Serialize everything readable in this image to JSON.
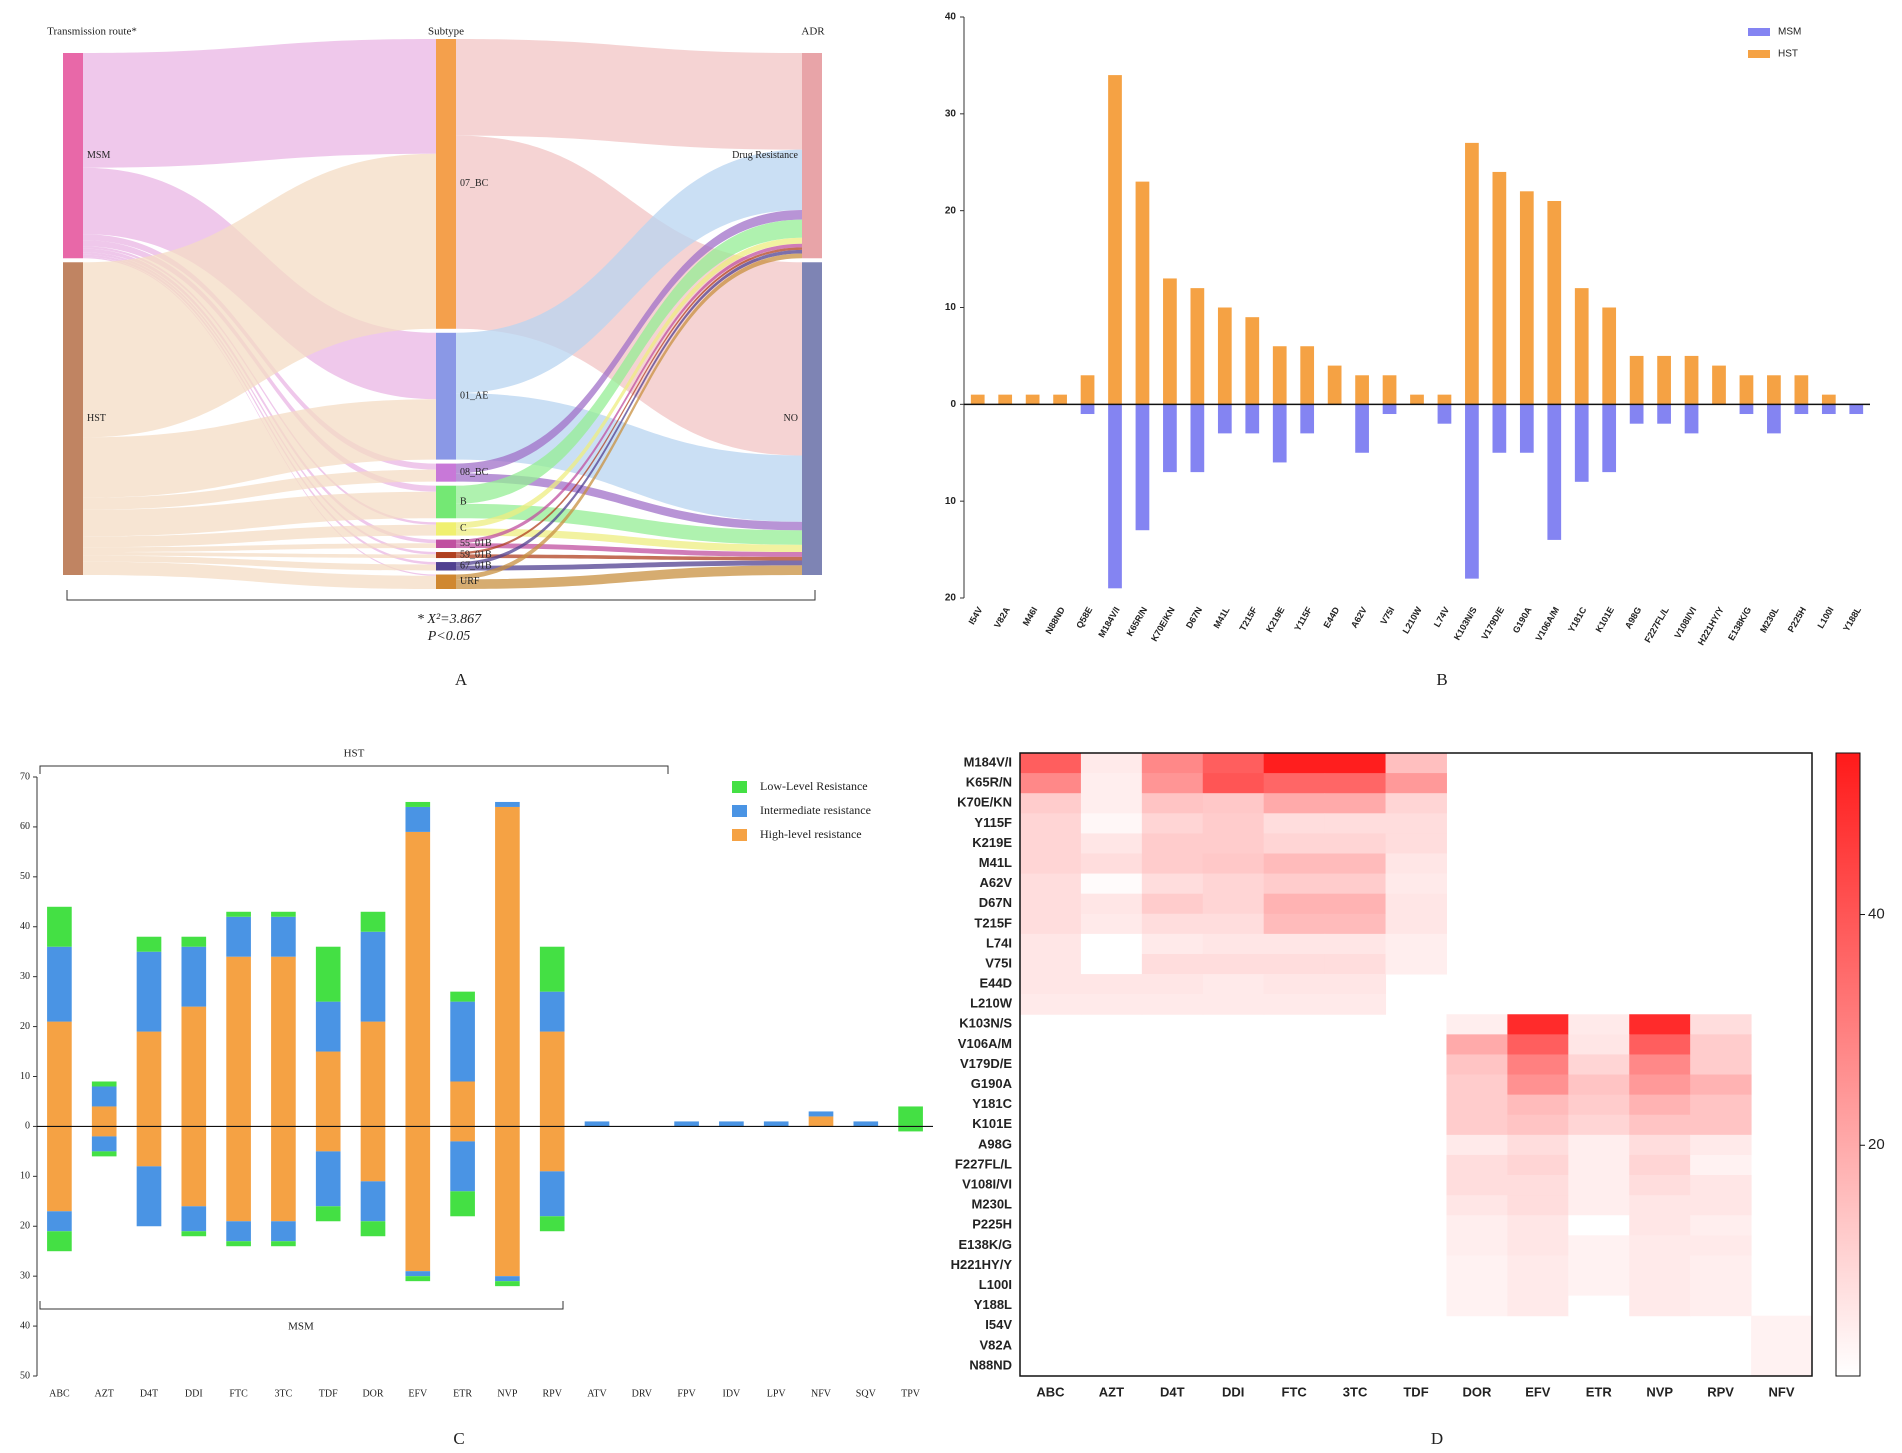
{
  "chart_data": [
    {
      "type": "sankey",
      "label": "A",
      "columns": [
        {
          "title": "Transmission route*",
          "nodes": [
            {
              "name": "MSM",
              "color": "#e868a8",
              "flow": "#e9b6e4"
            },
            {
              "name": "HST",
              "color": "#c08462",
              "flow": "#f4dcc4"
            }
          ]
        },
        {
          "title": "Subtype",
          "nodes": [
            {
              "name": "07_BC",
              "color": "#f4a04c",
              "flow": "#f2c4c4"
            },
            {
              "name": "01_AE",
              "color": "#8a98e6",
              "flow": "#b8d4f0"
            },
            {
              "name": "08_BC",
              "color": "#c878d8",
              "flow": "#a070c8"
            },
            {
              "name": "B",
              "color": "#74e874",
              "flow": "#94ee94"
            },
            {
              "name": "C",
              "color": "#f0f070",
              "flow": "#eeee80"
            },
            {
              "name": "55_01B",
              "color": "#c050a0",
              "flow": "#c050a0"
            },
            {
              "name": "59_01B",
              "color": "#b04020",
              "flow": "#b04020"
            },
            {
              "name": "67_01B",
              "color": "#504090",
              "flow": "#504090"
            },
            {
              "name": "URF",
              "color": "#d08830",
              "flow": "#c89040"
            }
          ]
        },
        {
          "title": "ADR",
          "nodes": [
            {
              "name": "Drug Resistance",
              "color": "#e8a4a8",
              "flow": "#e8a4a8"
            },
            {
              "name": "NO",
              "color": "#7e84b4",
              "flow": "#7e84b4"
            }
          ]
        }
      ],
      "links": [
        {
          "source": "MSM",
          "target": "07_BC",
          "value": 95
        },
        {
          "source": "MSM",
          "target": "01_AE",
          "value": 55
        },
        {
          "source": "MSM",
          "target": "08_BC",
          "value": 5
        },
        {
          "source": "MSM",
          "target": "B",
          "value": 5
        },
        {
          "source": "MSM",
          "target": "C",
          "value": 2
        },
        {
          "source": "MSM",
          "target": "55_01B",
          "value": 3
        },
        {
          "source": "MSM",
          "target": "59_01B",
          "value": 2
        },
        {
          "source": "MSM",
          "target": "67_01B",
          "value": 2
        },
        {
          "source": "MSM",
          "target": "URF",
          "value": 1
        },
        {
          "source": "HST",
          "target": "07_BC",
          "value": 145
        },
        {
          "source": "HST",
          "target": "01_AE",
          "value": 50
        },
        {
          "source": "HST",
          "target": "08_BC",
          "value": 10
        },
        {
          "source": "HST",
          "target": "B",
          "value": 22
        },
        {
          "source": "HST",
          "target": "C",
          "value": 9
        },
        {
          "source": "HST",
          "target": "55_01B",
          "value": 4
        },
        {
          "source": "HST",
          "target": "59_01B",
          "value": 3
        },
        {
          "source": "HST",
          "target": "67_01B",
          "value": 5
        },
        {
          "source": "HST",
          "target": "URF",
          "value": 11
        },
        {
          "source": "07_BC",
          "target": "Drug Resistance",
          "value": 80
        },
        {
          "source": "07_BC",
          "target": "NO",
          "value": 160
        },
        {
          "source": "01_AE",
          "target": "Drug Resistance",
          "value": 50
        },
        {
          "source": "01_AE",
          "target": "NO",
          "value": 55
        },
        {
          "source": "08_BC",
          "target": "Drug Resistance",
          "value": 8
        },
        {
          "source": "08_BC",
          "target": "NO",
          "value": 7
        },
        {
          "source": "B",
          "target": "Drug Resistance",
          "value": 15
        },
        {
          "source": "B",
          "target": "NO",
          "value": 12
        },
        {
          "source": "C",
          "target": "Drug Resistance",
          "value": 5
        },
        {
          "source": "C",
          "target": "NO",
          "value": 6
        },
        {
          "source": "55_01B",
          "target": "Drug Resistance",
          "value": 3
        },
        {
          "source": "55_01B",
          "target": "NO",
          "value": 4
        },
        {
          "source": "59_01B",
          "target": "Drug Resistance",
          "value": 2
        },
        {
          "source": "59_01B",
          "target": "NO",
          "value": 3
        },
        {
          "source": "67_01B",
          "target": "Drug Resistance",
          "value": 3
        },
        {
          "source": "67_01B",
          "target": "NO",
          "value": 4
        },
        {
          "source": "URF",
          "target": "Drug Resistance",
          "value": 4
        },
        {
          "source": "URF",
          "target": "NO",
          "value": 8
        }
      ],
      "annotations": [
        "* X²=3.867",
        "P<0.05"
      ]
    },
    {
      "type": "bar",
      "label": "B",
      "categories": [
        "I54V",
        "V82A",
        "M46I",
        "N88ND",
        "Q58E",
        "M184V/I",
        "K65R/N",
        "K70E/KN",
        "D67N",
        "M41L",
        "T215F",
        "K219E",
        "Y115F",
        "E44D",
        "A62V",
        "V75I",
        "L210W",
        "L74V",
        "K103N/S",
        "V179D/E",
        "G190A",
        "V106A/M",
        "Y181C",
        "K101E",
        "A98G",
        "F227FL/L",
        "V108I/VI",
        "H221HY/Y",
        "E138K/G",
        "M230L",
        "P225H",
        "L100I",
        "Y188L"
      ],
      "series": [
        {
          "name": "MSM",
          "color": "#8484f2",
          "values": [
            0,
            0,
            0,
            0,
            -1,
            -19,
            -13,
            -7,
            -7,
            -3,
            -3,
            -6,
            -3,
            0,
            -5,
            -1,
            0,
            -2,
            -18,
            -5,
            -5,
            -14,
            -8,
            -7,
            -2,
            -2,
            -3,
            0,
            -1,
            -3,
            -1,
            -1,
            -1
          ]
        },
        {
          "name": "HST",
          "color": "#f5a244",
          "values": [
            1,
            1,
            1,
            1,
            3,
            34,
            23,
            13,
            12,
            10,
            9,
            6,
            6,
            4,
            3,
            3,
            1,
            1,
            27,
            24,
            22,
            21,
            12,
            10,
            5,
            5,
            5,
            4,
            3,
            3,
            3,
            1,
            0
          ]
        }
      ],
      "ylim": [
        -20,
        40
      ],
      "yticks": [
        {
          "value": -20,
          "label": "20"
        },
        {
          "value": -10,
          "label": "10"
        },
        0,
        10,
        20,
        30,
        40
      ],
      "legend": "upper right"
    },
    {
      "type": "stacked_bar",
      "label": "C",
      "categories": [
        "ABC",
        "AZT",
        "D4T",
        "DDI",
        "FTC",
        "3TC",
        "TDF",
        "DOR",
        "EFV",
        "ETR",
        "NVP",
        "RPV",
        "ATV",
        "DRV",
        "FPV",
        "IDV",
        "LPV",
        "NFV",
        "SQV",
        "TPV"
      ],
      "series": [
        {
          "name": "Low-Level Resistance",
          "color": "#44e044",
          "values": [
            8,
            1,
            3,
            2,
            1,
            1,
            11,
            4,
            1,
            2,
            0,
            9,
            0,
            0,
            0,
            0,
            0,
            0,
            0,
            4
          ],
          "values_msm": [
            -4,
            -1,
            0,
            -1,
            -1,
            -1,
            -3,
            -3,
            -1,
            -5,
            -1,
            -3,
            0,
            0,
            0,
            0,
            0,
            0,
            0,
            -1
          ]
        },
        {
          "name": "Intermediate resistance",
          "color": "#4a94e4",
          "values": [
            15,
            4,
            16,
            12,
            8,
            8,
            10,
            18,
            5,
            16,
            1,
            8,
            1,
            0,
            1,
            1,
            1,
            1,
            1,
            0
          ],
          "values_msm": [
            -4,
            -3,
            -12,
            -5,
            -4,
            -4,
            -11,
            -8,
            -1,
            -10,
            -1,
            -9,
            0,
            0,
            0,
            0,
            0,
            0,
            0,
            0
          ]
        },
        {
          "name": "High-level resistance",
          "color": "#f5a244",
          "values": [
            21,
            4,
            19,
            24,
            34,
            34,
            15,
            21,
            59,
            9,
            64,
            19,
            0,
            0,
            0,
            0,
            0,
            2,
            0,
            0
          ],
          "values_msm": [
            -17,
            -2,
            -8,
            -16,
            -19,
            -19,
            -5,
            -11,
            -29,
            -3,
            -30,
            -9,
            0,
            0,
            0,
            0,
            0,
            0,
            0,
            0
          ]
        }
      ],
      "ylim": [
        -50,
        70
      ],
      "yticks": [
        {
          "value": -50,
          "label": "50"
        },
        {
          "value": -40,
          "label": "40"
        },
        {
          "value": -30,
          "label": "30"
        },
        {
          "value": -20,
          "label": "20"
        },
        {
          "value": -10,
          "label": "10"
        },
        0,
        10,
        20,
        30,
        40,
        50,
        60,
        70
      ],
      "annotations": [
        "HST",
        "MSM"
      ],
      "legend": "upper right"
    },
    {
      "type": "heatmap",
      "label": "D",
      "rows": [
        "M184V/I",
        "K65R/N",
        "K70E/KN",
        "Y115F",
        "K219E",
        "M41L",
        "A62V",
        "D67N",
        "T215F",
        "L74I",
        "V75I",
        "E44D",
        "L210W",
        "K103N/S",
        "V106A/M",
        "V179D/E",
        "G190A",
        "Y181C",
        "K101E",
        "A98G",
        "F227FL/L",
        "V108I/VI",
        "M230L",
        "P225H",
        "E138K/G",
        "H221HY/Y",
        "L100I",
        "Y188L",
        "I54V",
        "V82A",
        "N88ND"
      ],
      "columns": [
        "ABC",
        "AZT",
        "D4T",
        "DDI",
        "FTC",
        "3TC",
        "TDF",
        "DOR",
        "EFV",
        "ETR",
        "NVP",
        "RPV",
        "NFV"
      ],
      "values": [
        [
          38,
          5,
          28,
          38,
          53,
          53,
          15,
          null,
          null,
          null,
          null,
          null,
          null
        ],
        [
          28,
          4,
          25,
          40,
          36,
          36,
          24,
          null,
          null,
          null,
          null,
          null,
          null
        ],
        [
          12,
          4,
          14,
          13,
          20,
          20,
          10,
          null,
          null,
          null,
          null,
          null,
          null
        ],
        [
          10,
          2,
          10,
          12,
          8,
          8,
          8,
          null,
          null,
          null,
          null,
          null,
          null
        ],
        [
          10,
          6,
          12,
          12,
          10,
          10,
          8,
          null,
          null,
          null,
          null,
          null,
          null
        ],
        [
          10,
          8,
          12,
          13,
          16,
          16,
          6,
          null,
          null,
          null,
          null,
          null,
          null
        ],
        [
          8,
          1,
          8,
          10,
          12,
          12,
          5,
          null,
          null,
          null,
          null,
          null,
          null
        ],
        [
          8,
          6,
          12,
          10,
          18,
          18,
          6,
          null,
          null,
          null,
          null,
          null,
          null
        ],
        [
          8,
          5,
          8,
          8,
          16,
          16,
          6,
          null,
          null,
          null,
          null,
          null,
          null
        ],
        [
          6,
          0,
          5,
          6,
          6,
          6,
          4,
          null,
          null,
          null,
          null,
          null,
          null
        ],
        [
          6,
          0,
          8,
          8,
          8,
          8,
          4,
          null,
          null,
          null,
          null,
          null,
          null
        ],
        [
          6,
          6,
          6,
          5,
          6,
          6,
          null,
          null,
          null,
          null,
          null,
          null,
          null
        ],
        [
          5,
          5,
          5,
          5,
          5,
          5,
          null,
          null,
          null,
          null,
          null,
          null,
          null
        ],
        [
          null,
          null,
          null,
          null,
          null,
          null,
          null,
          4,
          50,
          5,
          50,
          8,
          null
        ],
        [
          null,
          null,
          null,
          null,
          null,
          null,
          null,
          20,
          38,
          6,
          38,
          12,
          null
        ],
        [
          null,
          null,
          null,
          null,
          null,
          null,
          null,
          14,
          30,
          10,
          28,
          12,
          null
        ],
        [
          null,
          null,
          null,
          null,
          null,
          null,
          null,
          12,
          26,
          14,
          24,
          18,
          null
        ],
        [
          null,
          null,
          null,
          null,
          null,
          null,
          null,
          12,
          16,
          12,
          18,
          14,
          null
        ],
        [
          null,
          null,
          null,
          null,
          null,
          null,
          null,
          12,
          14,
          10,
          14,
          14,
          null
        ],
        [
          null,
          null,
          null,
          null,
          null,
          null,
          null,
          5,
          8,
          4,
          8,
          5,
          null
        ],
        [
          null,
          null,
          null,
          null,
          null,
          null,
          null,
          8,
          10,
          4,
          10,
          3,
          null
        ],
        [
          null,
          null,
          null,
          null,
          null,
          null,
          null,
          8,
          8,
          4,
          8,
          6,
          null
        ],
        [
          null,
          null,
          null,
          null,
          null,
          null,
          null,
          6,
          8,
          4,
          6,
          6,
          null
        ],
        [
          null,
          null,
          null,
          null,
          null,
          null,
          null,
          4,
          6,
          0,
          6,
          4,
          null
        ],
        [
          null,
          null,
          null,
          null,
          null,
          null,
          null,
          4,
          6,
          3,
          5,
          5,
          null
        ],
        [
          null,
          null,
          null,
          null,
          null,
          null,
          null,
          3,
          5,
          3,
          5,
          4,
          null
        ],
        [
          null,
          null,
          null,
          null,
          null,
          null,
          null,
          3,
          5,
          3,
          5,
          4,
          null
        ],
        [
          null,
          null,
          null,
          null,
          null,
          null,
          null,
          3,
          5,
          0,
          5,
          4,
          null
        ],
        [
          null,
          null,
          null,
          null,
          null,
          null,
          null,
          null,
          null,
          null,
          null,
          null,
          3
        ],
        [
          null,
          null,
          null,
          null,
          null,
          null,
          null,
          null,
          null,
          null,
          null,
          null,
          3
        ],
        [
          null,
          null,
          null,
          null,
          null,
          null,
          null,
          null,
          null,
          null,
          null,
          null,
          3
        ]
      ],
      "colorscale": [
        "#ffffff",
        "#ff1a1a"
      ],
      "clim": [
        0,
        54
      ],
      "cticks": [
        20,
        40
      ]
    }
  ]
}
